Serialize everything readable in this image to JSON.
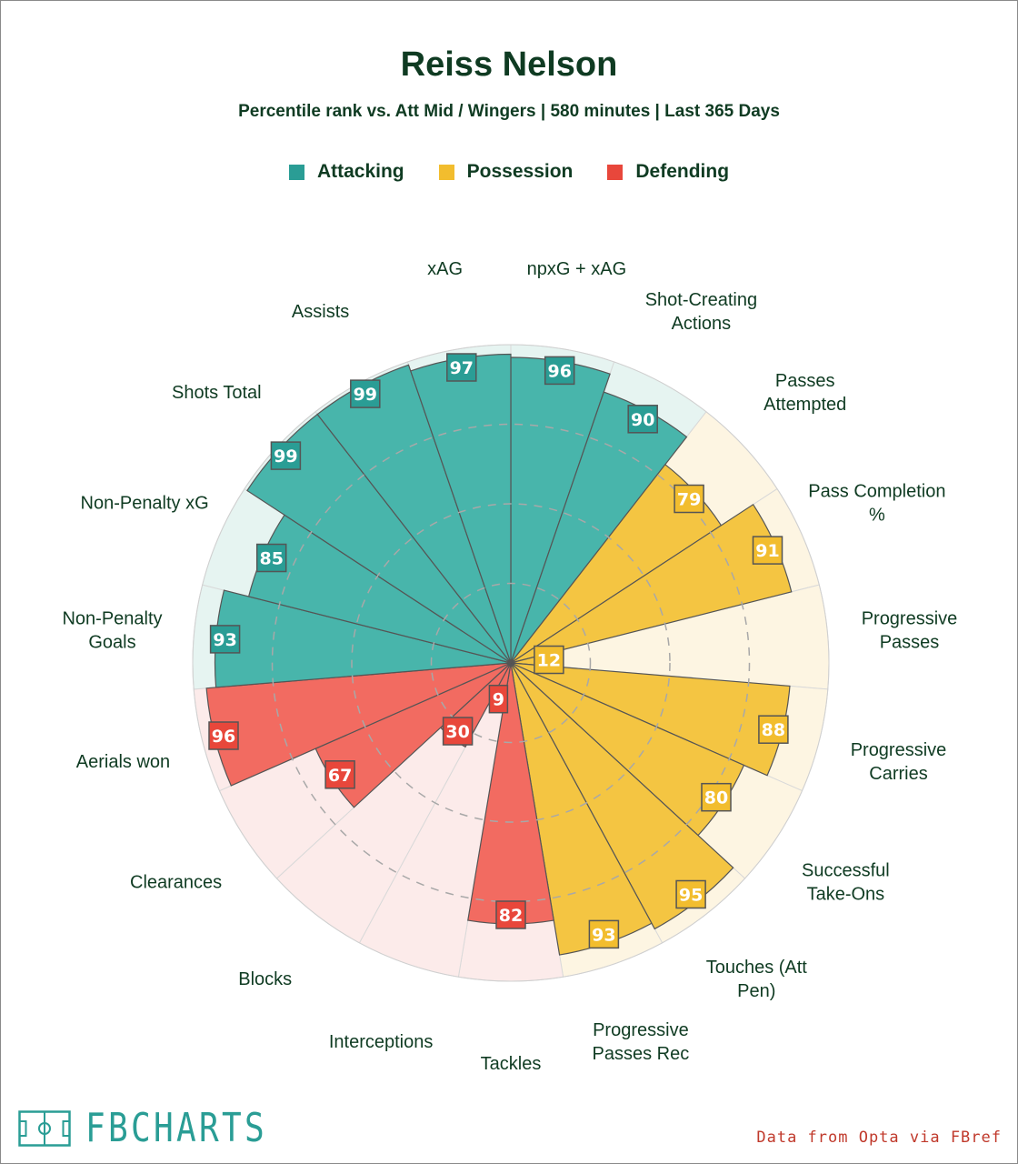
{
  "title": "Reiss Nelson",
  "subtitle": "Percentile rank vs. Att Mid / Wingers | 580 minutes | Last 365 Days",
  "legend": [
    {
      "label": "Attacking",
      "color": "#2a9d95"
    },
    {
      "label": "Possession",
      "color": "#f2bd2e"
    },
    {
      "label": "Defending",
      "color": "#e8473b"
    }
  ],
  "colors": {
    "Attacking": {
      "fill": "#48b5ab",
      "light": "#e6f4f1",
      "badge": "#2a9d95"
    },
    "Possession": {
      "fill": "#f4c542",
      "light": "#fdf5e2",
      "badge": "#f2bd2e"
    },
    "Defending": {
      "fill": "#f26b61",
      "light": "#fcebea",
      "badge": "#e8473b"
    }
  },
  "brand": "FBCHARTS",
  "source": "Data from Opta via FBref",
  "chart_data": {
    "type": "polar-bar",
    "title": "Reiss Nelson",
    "value_range": [
      0,
      100
    ],
    "grid_rings": [
      25,
      50,
      75
    ],
    "metrics": [
      {
        "label": "npxG + xAG",
        "value": 96,
        "group": "Attacking"
      },
      {
        "label": "Shot-Creating Actions",
        "value": 90,
        "group": "Attacking"
      },
      {
        "label": "Passes Attempted",
        "value": 79,
        "group": "Possession"
      },
      {
        "label": "Pass Completion %",
        "value": 91,
        "group": "Possession"
      },
      {
        "label": "Progressive Passes",
        "value": 12,
        "group": "Possession"
      },
      {
        "label": "Progressive Carries",
        "value": 88,
        "group": "Possession"
      },
      {
        "label": "Successful Take-Ons",
        "value": 80,
        "group": "Possession"
      },
      {
        "label": "Touches (Att Pen)",
        "value": 95,
        "group": "Possession"
      },
      {
        "label": "Progressive Passes Rec",
        "value": 93,
        "group": "Possession"
      },
      {
        "label": "Tackles",
        "value": 82,
        "group": "Defending"
      },
      {
        "label": "Interceptions",
        "value": 9,
        "group": "Defending"
      },
      {
        "label": "Blocks",
        "value": 30,
        "group": "Defending"
      },
      {
        "label": "Clearances",
        "value": 67,
        "group": "Defending"
      },
      {
        "label": "Aerials won",
        "value": 96,
        "group": "Defending"
      },
      {
        "label": "Non-Penalty Goals",
        "value": 93,
        "group": "Attacking"
      },
      {
        "label": "Non-Penalty xG",
        "value": 85,
        "group": "Attacking"
      },
      {
        "label": "Shots Total",
        "value": 99,
        "group": "Attacking"
      },
      {
        "label": "Assists",
        "value": 99,
        "group": "Attacking"
      },
      {
        "label": "xAG",
        "value": 97,
        "group": "Attacking"
      }
    ]
  }
}
